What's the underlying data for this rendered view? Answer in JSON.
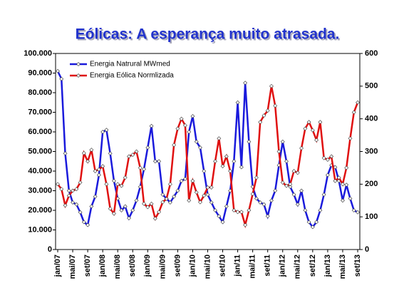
{
  "chart_data": {
    "type": "line",
    "title": "Eólicas:  A esperança muito atrasada.",
    "categories": [
      "jan/07",
      null,
      null,
      null,
      "mai/07",
      null,
      null,
      null,
      "set/07",
      null,
      null,
      null,
      "jan/08",
      null,
      null,
      null,
      "mai/08",
      null,
      null,
      null,
      "set/08",
      null,
      null,
      null,
      "jan/09",
      null,
      null,
      null,
      "mai/09",
      null,
      null,
      null,
      "set/09",
      null,
      null,
      null,
      "jan/10",
      null,
      null,
      null,
      "mai/10",
      null,
      null,
      null,
      "set/10",
      null,
      null,
      null,
      "jan/11",
      null,
      null,
      null,
      "mai/11",
      null,
      null,
      null,
      "set/11",
      null,
      null,
      null,
      "jan/12",
      null,
      null,
      null,
      "mai/12",
      null,
      null,
      null,
      "set/12",
      null,
      null,
      null,
      "jan/13",
      null,
      null,
      null,
      "mai/13",
      null,
      null,
      null,
      "set/13"
    ],
    "series": [
      {
        "name": "Energia Natrural MWmed",
        "color": "#1a1adc",
        "axis": "y",
        "values": [
          91000,
          87000,
          49000,
          30000,
          24000,
          23000,
          19000,
          14000,
          12500,
          22000,
          27000,
          38000,
          60000,
          61000,
          49000,
          35000,
          26000,
          20000,
          22000,
          16000,
          20000,
          25000,
          32000,
          41000,
          52000,
          63000,
          45000,
          45000,
          28000,
          26000,
          24000,
          27000,
          30000,
          35000,
          36000,
          60000,
          68000,
          55000,
          52000,
          40000,
          28000,
          24000,
          20000,
          17000,
          14000,
          22000,
          30000,
          45000,
          75000,
          42000,
          85000,
          55000,
          32000,
          26000,
          24000,
          23000,
          17000,
          25000,
          30000,
          43000,
          55000,
          45000,
          32000,
          28000,
          23000,
          30000,
          20000,
          14000,
          11500,
          14000,
          20000,
          28000,
          38000,
          43000,
          42000,
          35000,
          25000,
          33000,
          26000,
          20000,
          19000
        ]
      },
      {
        "name": "Energia Eólica Normlizada",
        "color": "#e01010",
        "axis": "y2",
        "values": [
          200,
          185,
          135,
          165,
          180,
          185,
          205,
          295,
          270,
          305,
          240,
          245,
          255,
          200,
          125,
          110,
          200,
          195,
          220,
          285,
          290,
          300,
          250,
          140,
          130,
          140,
          95,
          115,
          145,
          155,
          200,
          320,
          370,
          400,
          380,
          150,
          210,
          175,
          145,
          165,
          190,
          190,
          270,
          340,
          255,
          285,
          240,
          120,
          115,
          115,
          75,
          120,
          170,
          220,
          390,
          410,
          425,
          500,
          440,
          300,
          205,
          195,
          200,
          240,
          235,
          310,
          370,
          390,
          365,
          335,
          390,
          280,
          275,
          285,
          210,
          220,
          200,
          250,
          340,
          420,
          450
        ]
      }
    ],
    "ylim": [
      0,
      100000
    ],
    "yticks": [
      0,
      {
        "value": 10000,
        "label": "10.000"
      },
      {
        "value": 20000,
        "label": "20.000"
      },
      {
        "value": 30000,
        "label": "30.000"
      },
      {
        "value": 40000,
        "label": "40.000"
      },
      {
        "value": 50000,
        "label": "50.000"
      },
      {
        "value": 60000,
        "label": "60.000"
      },
      {
        "value": 70000,
        "label": "70.000"
      },
      {
        "value": 80000,
        "label": "80.000"
      },
      {
        "value": 90000,
        "label": "90.000"
      },
      {
        "value": 100000,
        "label": "100.000"
      }
    ],
    "y2lim": [
      0,
      600
    ],
    "y2ticks": [
      0,
      100,
      200,
      300,
      400,
      500,
      600
    ],
    "legend": "upper left"
  }
}
